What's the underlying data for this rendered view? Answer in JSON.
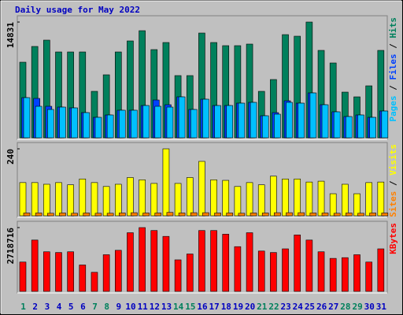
{
  "chart_data": [
    {
      "type": "bar",
      "title": "Daily usage for May 2022",
      "ylim": [
        0,
        14831
      ],
      "yticks": [
        14831
      ],
      "legend_separator": " / ",
      "series": [
        {
          "name": "Hits",
          "color": "#00805c",
          "values": [
            9686,
            11704,
            12512,
            10998,
            10998,
            10998,
            5953,
            8072,
            10998,
            12411,
            13722,
            11301,
            12209,
            7971,
            7971,
            13420,
            12209,
            11805,
            11805,
            12007,
            5953,
            7467,
            13218,
            13016,
            14831,
            11200,
            9586,
            5852,
            5247,
            6659,
            11200
          ]
        },
        {
          "name": "Files",
          "color": "#0040ff",
          "values": [
            5146,
            5045,
            4036,
            3935,
            3834,
            3229,
            2623,
            2926,
            3532,
            3532,
            4137,
            4843,
            4238,
            5247,
            3632,
            4944,
            4137,
            4137,
            4440,
            4541,
            2825,
            3229,
            4742,
            4440,
            5751,
            4238,
            3330,
            2724,
            2926,
            2623,
            3431
          ]
        },
        {
          "name": "Pages",
          "color": "#00c0ff",
          "values": [
            5146,
            4036,
            3632,
            3935,
            3834,
            3229,
            2623,
            2926,
            3532,
            3532,
            4137,
            4036,
            3935,
            5247,
            3632,
            4944,
            4137,
            4137,
            4440,
            4541,
            2825,
            3027,
            4541,
            4440,
            5751,
            4238,
            3330,
            2724,
            2926,
            2623,
            3431
          ]
        }
      ]
    },
    {
      "type": "bar",
      "ylim": [
        0,
        240
      ],
      "yticks": [
        240
      ],
      "legend_separator": " / ",
      "series": [
        {
          "name": "Visits",
          "color": "#ffff00",
          "values": [
            119,
            119,
            113,
            119,
            111,
            132,
            119,
            105,
            113,
            137,
            129,
            116,
            240,
            116,
            137,
            195,
            129,
            127,
            105,
            119,
            111,
            142,
            132,
            132,
            121,
            124,
            79,
            113,
            79,
            119,
            121
          ]
        },
        {
          "name": "Sites",
          "color": "#ff8000",
          "values": [
            10,
            10,
            9,
            10,
            9,
            10,
            9,
            9,
            10,
            11,
            10,
            10,
            12,
            10,
            11,
            11,
            10,
            10,
            9,
            10,
            10,
            11,
            11,
            11,
            10,
            10,
            9,
            10,
            9,
            10,
            10
          ]
        }
      ]
    },
    {
      "type": "bar",
      "ylim": [
        0,
        2718716
      ],
      "yticks": [
        2718716
      ],
      "categories": [
        "1",
        "2",
        "3",
        "4",
        "5",
        "6",
        "7",
        "8",
        "9",
        "10",
        "11",
        "12",
        "13",
        "14",
        "15",
        "16",
        "17",
        "18",
        "19",
        "20",
        "21",
        "22",
        "23",
        "24",
        "25",
        "26",
        "27",
        "28",
        "29",
        "30",
        "31"
      ],
      "category_colors": [
        "#00805c",
        "#0000c0",
        "#0000c0",
        "#0000c0",
        "#0000c0",
        "#0000c0",
        "#00805c",
        "#00805c",
        "#0000c0",
        "#0000c0",
        "#0000c0",
        "#0000c0",
        "#0000c0",
        "#00805c",
        "#00805c",
        "#0000c0",
        "#0000c0",
        "#0000c0",
        "#0000c0",
        "#0000c0",
        "#00805c",
        "#00805c",
        "#0000c0",
        "#0000c0",
        "#0000c0",
        "#0000c0",
        "#0000c0",
        "#00805c",
        "#00805c",
        "#0000c0",
        "#0000c0"
      ],
      "series": [
        {
          "name": "KBytes",
          "color": "#ff0000",
          "values": [
            1249960,
            2187430,
            1687446,
            1656197,
            1687446,
            1124964,
            812474,
            1562450,
            1749944,
            2499920,
            2718716,
            2593667,
            2343675,
            1343707,
            1593699,
            2593667,
            2593667,
            2437422,
            1906189,
            2499920,
            1718695,
            1656197,
            1812442,
            2406173,
            2187430,
            1687446,
            1406205,
            1437454,
            1562450,
            1249960,
            1812442
          ]
        }
      ]
    }
  ]
}
